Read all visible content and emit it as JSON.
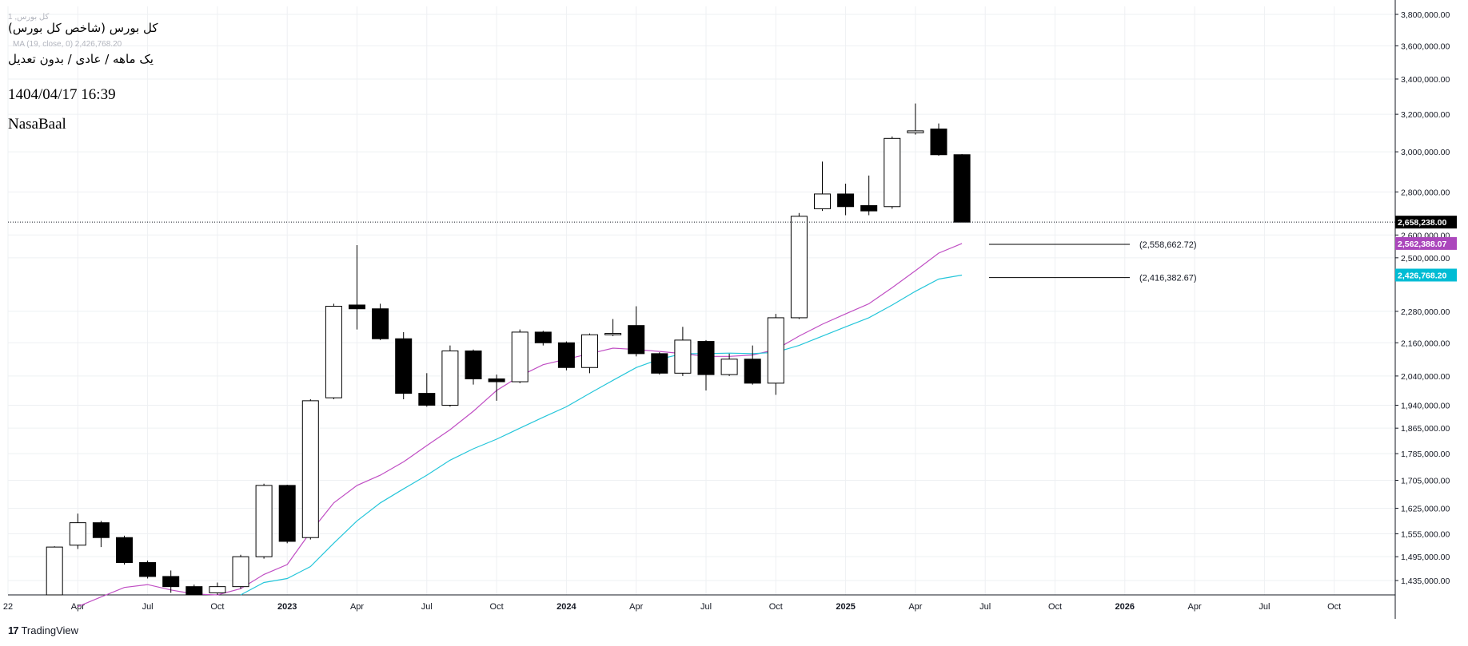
{
  "header": {
    "title": "کل بورس (شاخص کل بورس)",
    "subtitle": "یک ماهه / عادی / بدون تعدیل",
    "timestamp": "1404/04/17 16:39",
    "author": "NasaBaal",
    "watermark_symbol": "کل بورس, 1",
    "watermark_ma": "MA (19, close, 0)  2,426,768.20"
  },
  "branding": {
    "name": "TradingView"
  },
  "colors": {
    "ma_purple": "#c04fc4",
    "ma_cyan": "#26c6da",
    "price_label_bg": "#000000",
    "purple_label_bg": "#ab47bc",
    "cyan_label_bg": "#00bcd4",
    "grid": "#eef0f3",
    "candle": "#000000"
  },
  "chart_data": {
    "type": "candlestick",
    "title": "کل بورس (شاخص کل بورس)",
    "interval": "monthly",
    "y_axis": {
      "scale": "log",
      "ylim": [
        1390000,
        3850000
      ],
      "tick_values": [
        1435000,
        1495000,
        1555000,
        1625000,
        1705000,
        1785000,
        1865000,
        1940000,
        2040000,
        2160000,
        2280000,
        2500000,
        2600000,
        2800000,
        3000000,
        3200000,
        3400000,
        3600000,
        3800000
      ],
      "tick_labels": [
        "1,435,000.00",
        "1,495,000.00",
        "1,555,000.00",
        "1,625,000.00",
        "1,705,000.00",
        "1,785,000.00",
        "1,865,000.00",
        "1,940,000.00",
        "2,040,000.00",
        "2,160,000.00",
        "2,280,000.00",
        "2,500,000.00",
        "2,600,000.00",
        "2,800,000.00",
        "3,000,000.00",
        "3,200,000.00",
        "3,400,000.00",
        "3,600,000.00",
        "3,800,000.00"
      ]
    },
    "x_axis": {
      "start_month": "2022-01",
      "end_month": "2026-12",
      "tick_labels": [
        {
          "month": "2022-01",
          "label": "22",
          "bold": false
        },
        {
          "month": "2022-04",
          "label": "Apr",
          "bold": false
        },
        {
          "month": "2022-07",
          "label": "Jul",
          "bold": false
        },
        {
          "month": "2022-10",
          "label": "Oct",
          "bold": false
        },
        {
          "month": "2023-01",
          "label": "2023",
          "bold": true
        },
        {
          "month": "2023-04",
          "label": "Apr",
          "bold": false
        },
        {
          "month": "2023-07",
          "label": "Jul",
          "bold": false
        },
        {
          "month": "2023-10",
          "label": "Oct",
          "bold": false
        },
        {
          "month": "2024-01",
          "label": "2024",
          "bold": true
        },
        {
          "month": "2024-04",
          "label": "Apr",
          "bold": false
        },
        {
          "month": "2024-07",
          "label": "Jul",
          "bold": false
        },
        {
          "month": "2024-10",
          "label": "Oct",
          "bold": false
        },
        {
          "month": "2025-01",
          "label": "2025",
          "bold": true
        },
        {
          "month": "2025-04",
          "label": "Apr",
          "bold": false
        },
        {
          "month": "2025-07",
          "label": "Jul",
          "bold": false
        },
        {
          "month": "2025-10",
          "label": "Oct",
          "bold": false
        },
        {
          "month": "2026-01",
          "label": "2026",
          "bold": true
        },
        {
          "month": "2026-04",
          "label": "Apr",
          "bold": false
        },
        {
          "month": "2026-07",
          "label": "Jul",
          "bold": false
        },
        {
          "month": "2026-10",
          "label": "Oct",
          "bold": false
        }
      ]
    },
    "candles": [
      {
        "month": "2022-03",
        "o": 1385000,
        "h": 1522000,
        "l": 1380000,
        "c": 1520000
      },
      {
        "month": "2022-04",
        "o": 1525000,
        "h": 1610000,
        "l": 1515000,
        "c": 1585000
      },
      {
        "month": "2022-05",
        "o": 1585000,
        "h": 1590000,
        "l": 1520000,
        "c": 1545000
      },
      {
        "month": "2022-06",
        "o": 1545000,
        "h": 1550000,
        "l": 1475000,
        "c": 1480000
      },
      {
        "month": "2022-07",
        "o": 1480000,
        "h": 1485000,
        "l": 1440000,
        "c": 1445000
      },
      {
        "month": "2022-08",
        "o": 1445000,
        "h": 1460000,
        "l": 1405000,
        "c": 1420000
      },
      {
        "month": "2022-09",
        "o": 1420000,
        "h": 1425000,
        "l": 1395000,
        "c": 1400000
      },
      {
        "month": "2022-10",
        "o": 1405000,
        "h": 1430000,
        "l": 1395000,
        "c": 1420000
      },
      {
        "month": "2022-11",
        "o": 1420000,
        "h": 1500000,
        "l": 1415000,
        "c": 1495000
      },
      {
        "month": "2022-12",
        "o": 1495000,
        "h": 1695000,
        "l": 1490000,
        "c": 1690000
      },
      {
        "month": "2023-01",
        "o": 1690000,
        "h": 1692000,
        "l": 1530000,
        "c": 1535000
      },
      {
        "month": "2023-02",
        "o": 1545000,
        "h": 1960000,
        "l": 1540000,
        "c": 1955000
      },
      {
        "month": "2023-03",
        "o": 1965000,
        "h": 2310000,
        "l": 1960000,
        "c": 2300000
      },
      {
        "month": "2023-04",
        "o": 2305000,
        "h": 2555000,
        "l": 2210000,
        "c": 2290000
      },
      {
        "month": "2023-05",
        "o": 2290000,
        "h": 2310000,
        "l": 2170000,
        "c": 2175000
      },
      {
        "month": "2023-06",
        "o": 2175000,
        "h": 2200000,
        "l": 1960000,
        "c": 1980000
      },
      {
        "month": "2023-07",
        "o": 1980000,
        "h": 2050000,
        "l": 1935000,
        "c": 1940000
      },
      {
        "month": "2023-08",
        "o": 1940000,
        "h": 2150000,
        "l": 1935000,
        "c": 2130000
      },
      {
        "month": "2023-09",
        "o": 2130000,
        "h": 2135000,
        "l": 2010000,
        "c": 2030000
      },
      {
        "month": "2023-10",
        "o": 2030000,
        "h": 2045000,
        "l": 1955000,
        "c": 2020000
      },
      {
        "month": "2023-11",
        "o": 2020000,
        "h": 2210000,
        "l": 2015000,
        "c": 2200000
      },
      {
        "month": "2023-12",
        "o": 2200000,
        "h": 2205000,
        "l": 2150000,
        "c": 2160000
      },
      {
        "month": "2024-01",
        "o": 2160000,
        "h": 2165000,
        "l": 2060000,
        "c": 2070000
      },
      {
        "month": "2024-02",
        "o": 2070000,
        "h": 2195000,
        "l": 2050000,
        "c": 2190000
      },
      {
        "month": "2024-03",
        "o": 2190000,
        "h": 2250000,
        "l": 2185000,
        "c": 2195000
      },
      {
        "month": "2024-04",
        "o": 2225000,
        "h": 2300000,
        "l": 2110000,
        "c": 2120000
      },
      {
        "month": "2024-05",
        "o": 2120000,
        "h": 2125000,
        "l": 2045000,
        "c": 2050000
      },
      {
        "month": "2024-06",
        "o": 2050000,
        "h": 2220000,
        "l": 2040000,
        "c": 2170000
      },
      {
        "month": "2024-07",
        "o": 2165000,
        "h": 2170000,
        "l": 1990000,
        "c": 2045000
      },
      {
        "month": "2024-08",
        "o": 2045000,
        "h": 2120000,
        "l": 2040000,
        "c": 2100000
      },
      {
        "month": "2024-09",
        "o": 2100000,
        "h": 2150000,
        "l": 2010000,
        "c": 2015000
      },
      {
        "month": "2024-10",
        "o": 2015000,
        "h": 2270000,
        "l": 1975000,
        "c": 2255000
      },
      {
        "month": "2024-11",
        "o": 2255000,
        "h": 2700000,
        "l": 2250000,
        "c": 2685000
      },
      {
        "month": "2024-12",
        "o": 2720000,
        "h": 2950000,
        "l": 2710000,
        "c": 2790000
      },
      {
        "month": "2025-01",
        "o": 2790000,
        "h": 2840000,
        "l": 2690000,
        "c": 2730000
      },
      {
        "month": "2025-02",
        "o": 2735000,
        "h": 2880000,
        "l": 2690000,
        "c": 2710000
      },
      {
        "month": "2025-03",
        "o": 2730000,
        "h": 3080000,
        "l": 2720000,
        "c": 3070000
      },
      {
        "month": "2025-04",
        "o": 3100000,
        "h": 3260000,
        "l": 3090000,
        "c": 3110000
      },
      {
        "month": "2025-05",
        "o": 3120000,
        "h": 3150000,
        "l": 2980000,
        "c": 2985000
      },
      {
        "month": "2025-06",
        "o": 2985000,
        "h": 2988000,
        "l": 2658238,
        "c": 2658238
      }
    ],
    "series": [
      {
        "name": "MA purple",
        "color": "#c04fc4",
        "points": [
          {
            "month": "2022-04",
            "value": 1372000
          },
          {
            "month": "2022-05",
            "value": 1395000
          },
          {
            "month": "2022-06",
            "value": 1418000
          },
          {
            "month": "2022-07",
            "value": 1425000
          },
          {
            "month": "2022-08",
            "value": 1412000
          },
          {
            "month": "2022-09",
            "value": 1402000
          },
          {
            "month": "2022-10",
            "value": 1400000
          },
          {
            "month": "2022-11",
            "value": 1415000
          },
          {
            "month": "2022-12",
            "value": 1450000
          },
          {
            "month": "2023-01",
            "value": 1475000
          },
          {
            "month": "2023-02",
            "value": 1560000
          },
          {
            "month": "2023-03",
            "value": 1640000
          },
          {
            "month": "2023-04",
            "value": 1690000
          },
          {
            "month": "2023-05",
            "value": 1720000
          },
          {
            "month": "2023-06",
            "value": 1760000
          },
          {
            "month": "2023-07",
            "value": 1810000
          },
          {
            "month": "2023-08",
            "value": 1860000
          },
          {
            "month": "2023-09",
            "value": 1920000
          },
          {
            "month": "2023-10",
            "value": 1990000
          },
          {
            "month": "2023-11",
            "value": 2040000
          },
          {
            "month": "2023-12",
            "value": 2080000
          },
          {
            "month": "2024-01",
            "value": 2100000
          },
          {
            "month": "2024-02",
            "value": 2120000
          },
          {
            "month": "2024-03",
            "value": 2140000
          },
          {
            "month": "2024-04",
            "value": 2135000
          },
          {
            "month": "2024-05",
            "value": 2128000
          },
          {
            "month": "2024-06",
            "value": 2120000
          },
          {
            "month": "2024-07",
            "value": 2110000
          },
          {
            "month": "2024-08",
            "value": 2110000
          },
          {
            "month": "2024-09",
            "value": 2115000
          },
          {
            "month": "2024-10",
            "value": 2135000
          },
          {
            "month": "2024-11",
            "value": 2185000
          },
          {
            "month": "2024-12",
            "value": 2230000
          },
          {
            "month": "2025-01",
            "value": 2270000
          },
          {
            "month": "2025-02",
            "value": 2310000
          },
          {
            "month": "2025-03",
            "value": 2375000
          },
          {
            "month": "2025-04",
            "value": 2445000
          },
          {
            "month": "2025-05",
            "value": 2520000
          },
          {
            "month": "2025-06",
            "value": 2562388
          }
        ]
      },
      {
        "name": "MA (19, close, 0)",
        "color": "#26c6da",
        "points": [
          {
            "month": "2022-11",
            "value": 1400000
          },
          {
            "month": "2022-12",
            "value": 1430000
          },
          {
            "month": "2023-01",
            "value": 1440000
          },
          {
            "month": "2023-02",
            "value": 1470000
          },
          {
            "month": "2023-03",
            "value": 1530000
          },
          {
            "month": "2023-04",
            "value": 1590000
          },
          {
            "month": "2023-05",
            "value": 1640000
          },
          {
            "month": "2023-06",
            "value": 1680000
          },
          {
            "month": "2023-07",
            "value": 1720000
          },
          {
            "month": "2023-08",
            "value": 1765000
          },
          {
            "month": "2023-09",
            "value": 1800000
          },
          {
            "month": "2023-10",
            "value": 1830000
          },
          {
            "month": "2023-11",
            "value": 1865000
          },
          {
            "month": "2023-12",
            "value": 1900000
          },
          {
            "month": "2024-01",
            "value": 1935000
          },
          {
            "month": "2024-02",
            "value": 1980000
          },
          {
            "month": "2024-03",
            "value": 2025000
          },
          {
            "month": "2024-04",
            "value": 2070000
          },
          {
            "month": "2024-05",
            "value": 2100000
          },
          {
            "month": "2024-06",
            "value": 2120000
          },
          {
            "month": "2024-07",
            "value": 2120000
          },
          {
            "month": "2024-08",
            "value": 2122000
          },
          {
            "month": "2024-09",
            "value": 2120000
          },
          {
            "month": "2024-10",
            "value": 2125000
          },
          {
            "month": "2024-11",
            "value": 2150000
          },
          {
            "month": "2024-12",
            "value": 2185000
          },
          {
            "month": "2025-01",
            "value": 2220000
          },
          {
            "month": "2025-02",
            "value": 2255000
          },
          {
            "month": "2025-03",
            "value": 2305000
          },
          {
            "month": "2025-04",
            "value": 2360000
          },
          {
            "month": "2025-05",
            "value": 2410000
          },
          {
            "month": "2025-06",
            "value": 2426768
          }
        ]
      }
    ],
    "projections": [
      {
        "value": 2558662.72,
        "label": "(2,558,662.72)"
      },
      {
        "value": 2416382.67,
        "label": "(2,416,382.67)"
      }
    ],
    "price_labels": [
      {
        "value": 2658238.0,
        "label": "2,658,238.00",
        "color": "#000000"
      },
      {
        "value": 2562388.07,
        "label": "2,562,388.07",
        "color": "#ab47bc"
      },
      {
        "value": 2426768.2,
        "label": "2,426,768.20",
        "color": "#00bcd4"
      }
    ],
    "last_price": 2658238.0
  }
}
